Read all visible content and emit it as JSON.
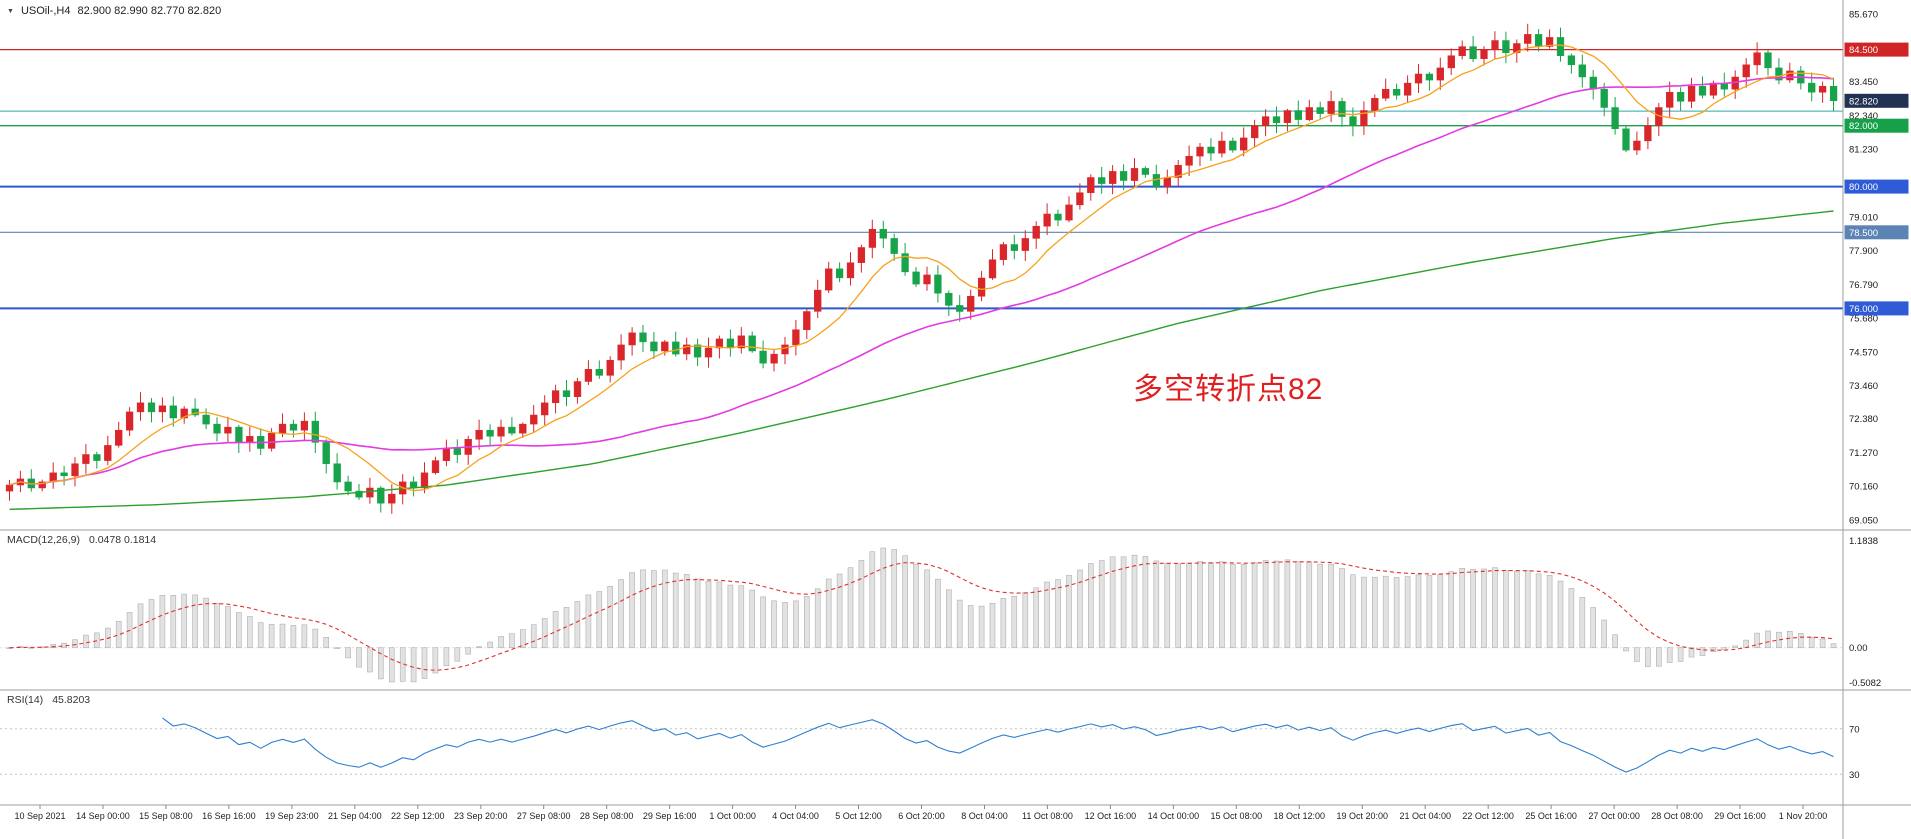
{
  "header": {
    "dropdown_icon": "▼",
    "symbol": "USOil-,H4",
    "ohlc": "82.900 82.990 82.770 82.820"
  },
  "annotation": {
    "text": "多空转折点82",
    "color": "#e02020"
  },
  "chart_data": {
    "type": "candlestick",
    "title": "USOil- H4",
    "y_range": [
      69.05,
      85.67
    ],
    "price_ticks": [
      {
        "price": 85.67,
        "label": "85.670"
      },
      {
        "price": 83.45,
        "label": "83.450"
      },
      {
        "price": 82.34,
        "label": "82.340"
      },
      {
        "price": 81.23,
        "label": "81.230"
      },
      {
        "price": 79.01,
        "label": "79.010"
      },
      {
        "price": 77.9,
        "label": "77.900"
      },
      {
        "price": 76.79,
        "label": "76.790"
      },
      {
        "price": 75.68,
        "label": "75.680"
      },
      {
        "price": 74.57,
        "label": "74.570"
      },
      {
        "price": 73.46,
        "label": "73.460"
      },
      {
        "price": 72.38,
        "label": "72.380"
      },
      {
        "price": 71.27,
        "label": "71.270"
      },
      {
        "price": 70.16,
        "label": "70.160"
      },
      {
        "price": 69.05,
        "label": "69.050"
      }
    ],
    "price_badges": [
      {
        "price": 84.5,
        "label": "84.500",
        "bg": "#cf2525"
      },
      {
        "price": 82.82,
        "label": "82.820",
        "bg": "#223253"
      },
      {
        "price": 82.0,
        "label": "82.000",
        "bg": "#17a04a"
      },
      {
        "price": 80.0,
        "label": "80.000",
        "bg": "#2f5bd7"
      },
      {
        "price": 78.5,
        "label": "78.500",
        "bg": "#5b84b5"
      },
      {
        "price": 76.0,
        "label": "76.000",
        "bg": "#2f5bd7"
      }
    ],
    "h_lines": [
      {
        "price": 84.5,
        "color": "#d42525",
        "w": 1.2
      },
      {
        "price": 82.48,
        "color": "#2aa7a7",
        "w": 1
      },
      {
        "price": 82.0,
        "color": "#1ba04a",
        "w": 1.4
      },
      {
        "price": 80.0,
        "color": "#2b57cf",
        "w": 2
      },
      {
        "price": 78.5,
        "color": "#5b84b5",
        "w": 1.2
      },
      {
        "price": 76.0,
        "color": "#2b57cf",
        "w": 2
      }
    ],
    "candles": {
      "up_color": "#d9262b",
      "down_color": "#17a34a",
      "first_open": 70.0,
      "closes": [
        70.2,
        70.4,
        70.1,
        70.3,
        70.6,
        70.5,
        70.9,
        71.2,
        71.0,
        71.5,
        72.0,
        72.6,
        72.9,
        72.6,
        72.8,
        72.4,
        72.7,
        72.5,
        72.2,
        71.9,
        72.1,
        71.6,
        71.8,
        71.4,
        71.9,
        72.2,
        72.0,
        72.3,
        71.6,
        70.9,
        70.3,
        70.0,
        69.8,
        70.1,
        69.6,
        69.9,
        70.3,
        70.1,
        70.6,
        71.0,
        71.4,
        71.2,
        71.7,
        72.0,
        71.8,
        72.1,
        71.9,
        72.2,
        72.5,
        72.9,
        73.3,
        73.1,
        73.6,
        74.0,
        73.8,
        74.3,
        74.8,
        75.2,
        74.9,
        74.6,
        74.9,
        74.5,
        74.8,
        74.4,
        74.7,
        75.0,
        74.7,
        75.1,
        74.6,
        74.2,
        74.5,
        74.8,
        75.3,
        75.9,
        76.6,
        77.3,
        77.0,
        77.5,
        78.0,
        78.6,
        78.3,
        77.8,
        77.2,
        76.8,
        77.1,
        76.5,
        76.1,
        75.9,
        76.4,
        77.0,
        77.6,
        78.1,
        77.9,
        78.3,
        78.7,
        79.1,
        78.9,
        79.4,
        79.8,
        80.3,
        80.1,
        80.5,
        80.2,
        80.6,
        80.4,
        80.0,
        80.3,
        80.7,
        81.0,
        81.3,
        81.1,
        81.5,
        81.2,
        81.6,
        82.0,
        82.3,
        82.1,
        82.5,
        82.2,
        82.6,
        82.4,
        82.8,
        82.3,
        82.0,
        82.5,
        82.9,
        83.2,
        83.0,
        83.4,
        83.7,
        83.5,
        83.9,
        84.3,
        84.6,
        84.2,
        84.5,
        84.8,
        84.4,
        84.7,
        85.0,
        84.6,
        84.9,
        84.3,
        84.0,
        83.6,
        83.2,
        82.6,
        81.9,
        81.2,
        81.5,
        82.0,
        82.6,
        83.1,
        82.8,
        83.3,
        83.0,
        83.4,
        83.2,
        83.6,
        84.0,
        84.4,
        83.9,
        83.5,
        83.8,
        83.4,
        83.1,
        83.3,
        82.82
      ]
    },
    "moving_averages": {
      "fast": {
        "color": "#f6a21b",
        "period": 8
      },
      "medium": {
        "color": "#e23be2",
        "period": 36
      },
      "slow": {
        "color": "#2ca02c",
        "anchors": [
          [
            0,
            69.4
          ],
          [
            0.08,
            69.55
          ],
          [
            0.16,
            69.8
          ],
          [
            0.24,
            70.2
          ],
          [
            0.32,
            70.9
          ],
          [
            0.4,
            71.9
          ],
          [
            0.48,
            73.0
          ],
          [
            0.56,
            74.2
          ],
          [
            0.64,
            75.5
          ],
          [
            0.72,
            76.6
          ],
          [
            0.8,
            77.5
          ],
          [
            0.88,
            78.3
          ],
          [
            0.94,
            78.8
          ],
          [
            1,
            79.2
          ]
        ]
      }
    },
    "time_labels": [
      "10 Sep 2021",
      "14 Sep 00:00",
      "15 Sep 08:00",
      "16 Sep 16:00",
      "19 Sep 23:00",
      "21 Sep 04:00",
      "22 Sep 12:00",
      "23 Sep 20:00",
      "27 Sep 08:00",
      "28 Sep 08:00",
      "29 Sep 16:00",
      "1 Oct 00:00",
      "4 Oct 04:00",
      "5 Oct 12:00",
      "6 Oct 20:00",
      "8 Oct 04:00",
      "11 Oct 08:00",
      "12 Oct 16:00",
      "14 Oct 00:00",
      "15 Oct 08:00",
      "18 Oct 12:00",
      "19 Oct 20:00",
      "21 Oct 04:00",
      "22 Oct 12:00",
      "25 Oct 16:00",
      "27 Oct 00:00",
      "28 Oct 08:00",
      "29 Oct 16:00",
      "1 Nov 20:00"
    ],
    "indicators": {
      "macd": {
        "name": "MACD(12,26,9)",
        "values": "0.0478 0.1814",
        "fast": 12,
        "slow": 26,
        "signal": 9,
        "axis_top": "1.1838",
        "axis_zero": "0.00",
        "axis_bottom": "-0.5082",
        "histogram_color": "#e2e2e2",
        "histogram_border": "#b0b0b0",
        "signal_color": "#e03131"
      },
      "rsi": {
        "name": "RSI(14)",
        "value": "45.8203",
        "period": 14,
        "levels": [
          70,
          30
        ],
        "level_labels": [
          "70",
          "30"
        ],
        "line_color": "#2e7fd0",
        "level_color": "#c4c4c4"
      }
    }
  }
}
